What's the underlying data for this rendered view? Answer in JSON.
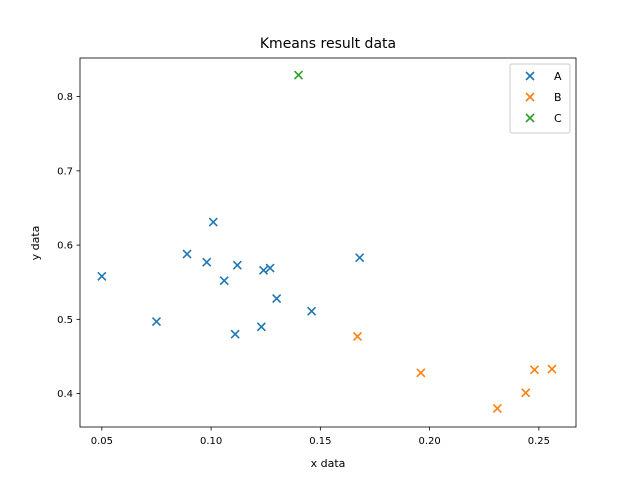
{
  "chart_data": {
    "type": "scatter",
    "title": "Kmeans result data",
    "xlabel": "x data",
    "ylabel": "y data",
    "xlim": [
      0.04,
      0.267
    ],
    "ylim": [
      0.355,
      0.852
    ],
    "xticks": [
      0.05,
      0.1,
      0.15,
      0.2,
      0.25
    ],
    "xtick_labels": [
      "0.05",
      "0.10",
      "0.15",
      "0.20",
      "0.25"
    ],
    "yticks": [
      0.4,
      0.5,
      0.6,
      0.7,
      0.8
    ],
    "ytick_labels": [
      "0.4",
      "0.5",
      "0.6",
      "0.7",
      "0.8"
    ],
    "grid": false,
    "legend_position": "top-right",
    "marker": "x",
    "series": [
      {
        "name": "A",
        "color": "#1f77b4",
        "points": [
          [
            0.05,
            0.558
          ],
          [
            0.075,
            0.497
          ],
          [
            0.089,
            0.588
          ],
          [
            0.098,
            0.577
          ],
          [
            0.101,
            0.631
          ],
          [
            0.106,
            0.552
          ],
          [
            0.111,
            0.48
          ],
          [
            0.112,
            0.573
          ],
          [
            0.123,
            0.49
          ],
          [
            0.124,
            0.566
          ],
          [
            0.127,
            0.569
          ],
          [
            0.13,
            0.528
          ],
          [
            0.146,
            0.511
          ],
          [
            0.168,
            0.583
          ]
        ]
      },
      {
        "name": "B",
        "color": "#ff7f0e",
        "points": [
          [
            0.167,
            0.477
          ],
          [
            0.196,
            0.428
          ],
          [
            0.231,
            0.38
          ],
          [
            0.244,
            0.401
          ],
          [
            0.248,
            0.432
          ],
          [
            0.256,
            0.433
          ]
        ]
      },
      {
        "name": "C",
        "color": "#2ca02c",
        "points": [
          [
            0.14,
            0.829
          ]
        ]
      }
    ]
  }
}
